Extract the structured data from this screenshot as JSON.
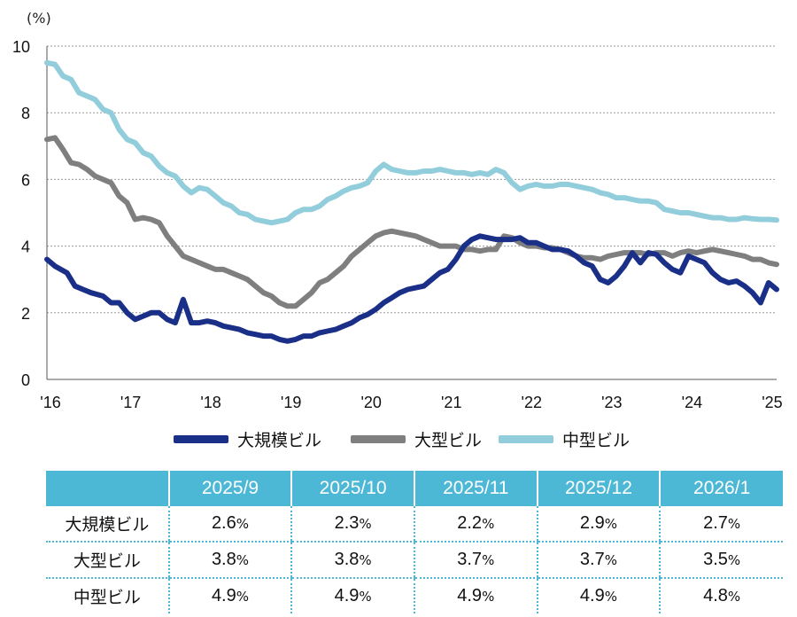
{
  "chart_data": {
    "type": "line",
    "yunit": "(%)",
    "ylim": [
      0,
      10
    ],
    "yticks": [
      "0",
      "2",
      "4",
      "6",
      "8",
      "10"
    ],
    "xlim": [
      2016.0,
      2025.1
    ],
    "xticks": [
      {
        "x": 2016,
        "label": "'16"
      },
      {
        "x": 2017,
        "label": "'17"
      },
      {
        "x": 2018,
        "label": "'18"
      },
      {
        "x": 2019,
        "label": "'19"
      },
      {
        "x": 2020,
        "label": "'20"
      },
      {
        "x": 2021,
        "label": "'21"
      },
      {
        "x": 2022,
        "label": "'22"
      },
      {
        "x": 2023,
        "label": "'23"
      },
      {
        "x": 2024,
        "label": "'24"
      },
      {
        "x": 2025,
        "label": "'25"
      }
    ],
    "grid": "horizontal-dotted",
    "legend_position": "bottom",
    "series": [
      {
        "name": "大規模ビル",
        "color": "#1a2f87",
        "x": [
          2016.0,
          2016.1,
          2016.25,
          2016.35,
          2016.45,
          2016.55,
          2016.7,
          2016.8,
          2016.9,
          2017.0,
          2017.1,
          2017.2,
          2017.3,
          2017.4,
          2017.5,
          2017.6,
          2017.7,
          2017.8,
          2017.9,
          2018.0,
          2018.1,
          2018.2,
          2018.3,
          2018.4,
          2018.5,
          2018.6,
          2018.7,
          2018.8,
          2018.9,
          2019.0,
          2019.1,
          2019.2,
          2019.3,
          2019.4,
          2019.5,
          2019.6,
          2019.7,
          2019.8,
          2019.9,
          2020.0,
          2020.1,
          2020.2,
          2020.3,
          2020.4,
          2020.5,
          2020.6,
          2020.7,
          2020.8,
          2020.9,
          2021.0,
          2021.1,
          2021.2,
          2021.3,
          2021.4,
          2021.5,
          2021.6,
          2021.7,
          2021.8,
          2021.9,
          2022.0,
          2022.1,
          2022.2,
          2022.3,
          2022.4,
          2022.5,
          2022.6,
          2022.7,
          2022.8,
          2022.9,
          2023.0,
          2023.1,
          2023.2,
          2023.3,
          2023.4,
          2023.5,
          2023.6,
          2023.7,
          2023.8,
          2023.9,
          2024.0,
          2024.1,
          2024.2,
          2024.3,
          2024.4,
          2024.5,
          2024.6,
          2024.7,
          2024.8,
          2024.9,
          2025.0,
          2025.1
        ],
        "y": [
          3.6,
          3.4,
          3.2,
          2.8,
          2.7,
          2.6,
          2.5,
          2.3,
          2.3,
          2.0,
          1.8,
          1.9,
          2.0,
          2.0,
          1.8,
          1.7,
          2.4,
          1.7,
          1.7,
          1.75,
          1.7,
          1.6,
          1.55,
          1.5,
          1.4,
          1.35,
          1.3,
          1.3,
          1.2,
          1.15,
          1.2,
          1.3,
          1.3,
          1.4,
          1.45,
          1.5,
          1.6,
          1.7,
          1.85,
          1.95,
          2.1,
          2.3,
          2.45,
          2.6,
          2.7,
          2.75,
          2.8,
          3.0,
          3.2,
          3.3,
          3.6,
          4.0,
          4.2,
          4.3,
          4.25,
          4.2,
          4.2,
          4.2,
          4.25,
          4.1,
          4.1,
          4.0,
          3.9,
          3.9,
          3.85,
          3.7,
          3.5,
          3.4,
          3.0,
          2.9,
          3.1,
          3.4,
          3.8,
          3.5,
          3.8,
          3.75,
          3.5,
          3.3,
          3.2,
          3.7,
          3.6,
          3.5,
          3.2,
          3.0,
          2.9,
          2.95,
          2.8,
          2.6,
          2.3,
          2.9,
          2.7
        ]
      },
      {
        "name": "大型ビル",
        "color": "#7f7f7f",
        "x": [
          2016.0,
          2016.1,
          2016.2,
          2016.3,
          2016.4,
          2016.5,
          2016.6,
          2016.7,
          2016.8,
          2016.9,
          2017.0,
          2017.1,
          2017.2,
          2017.3,
          2017.4,
          2017.5,
          2017.6,
          2017.7,
          2017.8,
          2017.9,
          2018.0,
          2018.1,
          2018.2,
          2018.3,
          2018.4,
          2018.5,
          2018.6,
          2018.7,
          2018.8,
          2018.9,
          2019.0,
          2019.1,
          2019.2,
          2019.3,
          2019.4,
          2019.5,
          2019.6,
          2019.7,
          2019.8,
          2019.9,
          2020.0,
          2020.1,
          2020.2,
          2020.3,
          2020.4,
          2020.5,
          2020.6,
          2020.7,
          2020.8,
          2020.9,
          2021.0,
          2021.1,
          2021.2,
          2021.3,
          2021.4,
          2021.5,
          2021.6,
          2021.7,
          2021.8,
          2021.9,
          2022.0,
          2022.1,
          2022.2,
          2022.3,
          2022.4,
          2022.5,
          2022.6,
          2022.7,
          2022.8,
          2022.9,
          2023.0,
          2023.1,
          2023.2,
          2023.3,
          2023.4,
          2023.5,
          2023.6,
          2023.7,
          2023.8,
          2023.9,
          2024.0,
          2024.1,
          2024.2,
          2024.3,
          2024.4,
          2024.5,
          2024.6,
          2024.7,
          2024.8,
          2024.9,
          2025.0,
          2025.1
        ],
        "y": [
          7.2,
          7.25,
          6.9,
          6.5,
          6.45,
          6.3,
          6.1,
          6.0,
          5.9,
          5.5,
          5.3,
          4.8,
          4.85,
          4.8,
          4.7,
          4.3,
          4.0,
          3.7,
          3.6,
          3.5,
          3.4,
          3.3,
          3.3,
          3.2,
          3.1,
          3.0,
          2.8,
          2.6,
          2.5,
          2.3,
          2.2,
          2.2,
          2.4,
          2.6,
          2.9,
          3.0,
          3.2,
          3.4,
          3.7,
          3.9,
          4.1,
          4.3,
          4.4,
          4.45,
          4.4,
          4.35,
          4.3,
          4.2,
          4.1,
          4.0,
          4.0,
          4.0,
          3.9,
          3.9,
          3.85,
          3.9,
          3.9,
          4.3,
          4.25,
          4.1,
          4.0,
          4.0,
          3.95,
          3.95,
          3.9,
          3.8,
          3.7,
          3.65,
          3.65,
          3.6,
          3.7,
          3.75,
          3.8,
          3.8,
          3.8,
          3.75,
          3.8,
          3.8,
          3.7,
          3.8,
          3.85,
          3.8,
          3.85,
          3.9,
          3.85,
          3.8,
          3.75,
          3.7,
          3.6,
          3.6,
          3.5,
          3.45
        ]
      },
      {
        "name": "中型ビル",
        "color": "#92cddc",
        "x": [
          2016.0,
          2016.1,
          2016.2,
          2016.3,
          2016.4,
          2016.5,
          2016.6,
          2016.7,
          2016.8,
          2016.9,
          2017.0,
          2017.1,
          2017.2,
          2017.3,
          2017.4,
          2017.5,
          2017.6,
          2017.7,
          2017.8,
          2017.9,
          2018.0,
          2018.1,
          2018.2,
          2018.3,
          2018.4,
          2018.5,
          2018.6,
          2018.7,
          2018.8,
          2018.9,
          2019.0,
          2019.1,
          2019.2,
          2019.3,
          2019.4,
          2019.5,
          2019.6,
          2019.7,
          2019.8,
          2019.9,
          2020.0,
          2020.1,
          2020.2,
          2020.3,
          2020.4,
          2020.5,
          2020.6,
          2020.7,
          2020.8,
          2020.9,
          2021.0,
          2021.1,
          2021.2,
          2021.3,
          2021.4,
          2021.5,
          2021.6,
          2021.7,
          2021.8,
          2021.9,
          2022.0,
          2022.1,
          2022.2,
          2022.3,
          2022.4,
          2022.5,
          2022.6,
          2022.7,
          2022.8,
          2022.9,
          2023.0,
          2023.1,
          2023.2,
          2023.3,
          2023.4,
          2023.5,
          2023.6,
          2023.7,
          2023.8,
          2023.9,
          2024.0,
          2024.1,
          2024.2,
          2024.3,
          2024.4,
          2024.5,
          2024.6,
          2024.7,
          2024.8,
          2024.9,
          2025.0,
          2025.1
        ],
        "y": [
          9.5,
          9.45,
          9.1,
          9.0,
          8.6,
          8.5,
          8.4,
          8.1,
          8.0,
          7.5,
          7.2,
          7.1,
          6.8,
          6.7,
          6.4,
          6.2,
          6.1,
          5.8,
          5.6,
          5.75,
          5.7,
          5.5,
          5.3,
          5.2,
          5.0,
          4.95,
          4.8,
          4.75,
          4.7,
          4.75,
          4.8,
          5.0,
          5.1,
          5.1,
          5.2,
          5.4,
          5.5,
          5.65,
          5.75,
          5.8,
          5.9,
          6.25,
          6.45,
          6.3,
          6.25,
          6.2,
          6.2,
          6.25,
          6.25,
          6.3,
          6.25,
          6.2,
          6.2,
          6.15,
          6.2,
          6.15,
          6.3,
          6.2,
          5.9,
          5.7,
          5.8,
          5.85,
          5.8,
          5.8,
          5.85,
          5.85,
          5.8,
          5.75,
          5.7,
          5.6,
          5.55,
          5.45,
          5.45,
          5.4,
          5.35,
          5.35,
          5.3,
          5.1,
          5.05,
          5.0,
          5.0,
          4.95,
          4.9,
          4.85,
          4.85,
          4.8,
          4.8,
          4.85,
          4.82,
          4.8,
          4.8,
          4.78
        ]
      }
    ]
  },
  "table": {
    "columns": [
      "2025/9",
      "2025/10",
      "2025/11",
      "2025/12",
      "2026/1"
    ],
    "rows": [
      {
        "label": "大規模ビル",
        "values": [
          "2.6",
          "2.3",
          "2.2",
          "2.9",
          "2.7"
        ]
      },
      {
        "label": "大型ビル",
        "values": [
          "3.8",
          "3.8",
          "3.7",
          "3.7",
          "3.5"
        ]
      },
      {
        "label": "中型ビル",
        "values": [
          "4.9",
          "4.9",
          "4.9",
          "4.9",
          "4.8"
        ]
      }
    ],
    "unit": "%"
  }
}
